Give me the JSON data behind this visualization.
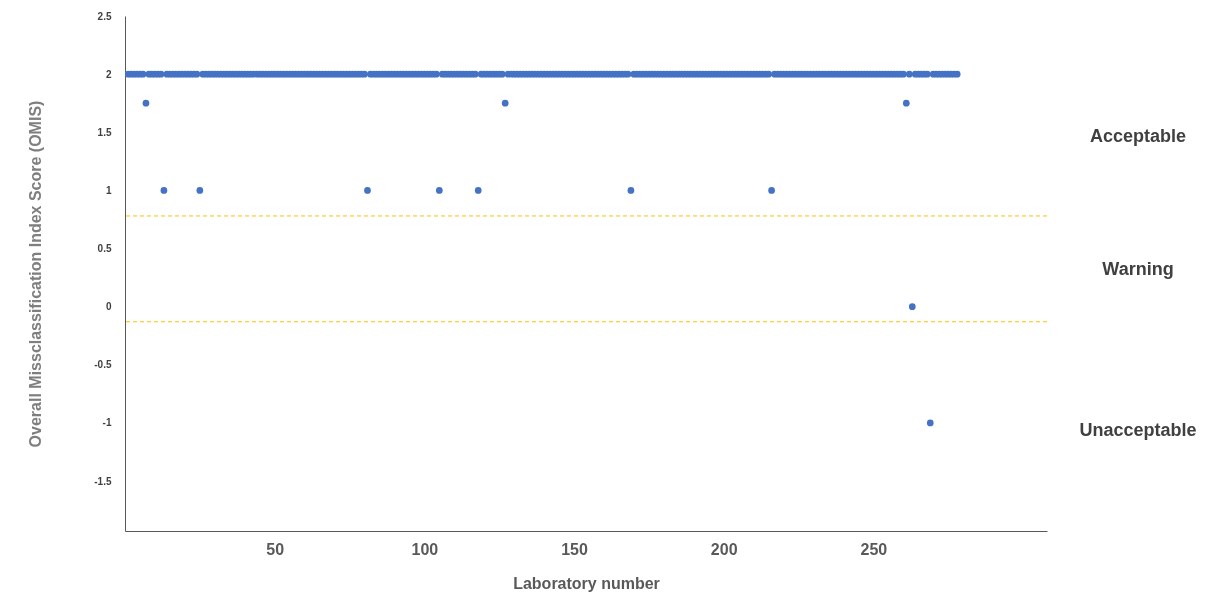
{
  "chart_data": {
    "type": "scatter",
    "xlabel": "Laboratory number",
    "ylabel": "Overall Missclassification Index Score (OMIS)",
    "x": [
      1,
      2,
      3,
      4,
      5,
      6,
      7,
      8,
      9,
      10,
      11,
      12,
      13,
      14,
      15,
      16,
      17,
      18,
      19,
      20,
      21,
      22,
      23,
      24,
      25,
      26,
      27,
      28,
      29,
      30,
      31,
      32,
      33,
      34,
      35,
      36,
      37,
      38,
      39,
      40,
      41,
      42,
      43,
      44,
      45,
      46,
      47,
      48,
      49,
      50,
      51,
      52,
      53,
      54,
      55,
      56,
      57,
      58,
      59,
      60,
      61,
      62,
      63,
      64,
      65,
      66,
      67,
      68,
      69,
      70,
      71,
      72,
      73,
      74,
      75,
      76,
      77,
      78,
      79,
      80,
      81,
      82,
      83,
      84,
      85,
      86,
      87,
      88,
      89,
      90,
      91,
      92,
      93,
      94,
      95,
      96,
      97,
      98,
      99,
      100,
      101,
      102,
      103,
      104,
      105,
      106,
      107,
      108,
      109,
      110,
      111,
      112,
      113,
      114,
      115,
      116,
      117,
      118,
      119,
      120,
      121,
      122,
      123,
      124,
      125,
      126,
      127,
      128,
      129,
      130,
      131,
      132,
      133,
      134,
      135,
      136,
      137,
      138,
      139,
      140,
      141,
      142,
      143,
      144,
      145,
      146,
      147,
      148,
      149,
      150,
      151,
      152,
      153,
      154,
      155,
      156,
      157,
      158,
      159,
      160,
      161,
      162,
      163,
      164,
      165,
      166,
      167,
      168,
      169,
      170,
      171,
      172,
      173,
      174,
      175,
      176,
      177,
      178,
      179,
      180,
      181,
      182,
      183,
      184,
      185,
      186,
      187,
      188,
      189,
      190,
      191,
      192,
      193,
      194,
      195,
      196,
      197,
      198,
      199,
      200,
      201,
      202,
      203,
      204,
      205,
      206,
      207,
      208,
      209,
      210,
      211,
      212,
      213,
      214,
      215,
      216,
      217,
      218,
      219,
      220,
      221,
      222,
      223,
      224,
      225,
      226,
      227,
      228,
      229,
      230,
      231,
      232,
      233,
      234,
      235,
      236,
      237,
      238,
      239,
      240,
      241,
      242,
      243,
      244,
      245,
      246,
      247,
      248,
      249,
      250,
      251,
      252,
      253,
      254,
      255,
      256,
      257,
      258,
      259,
      260,
      261,
      262,
      263,
      264,
      265,
      266,
      267,
      268,
      269,
      270,
      271,
      272,
      273,
      274,
      275,
      276,
      277,
      278
    ],
    "series": [
      {
        "color": "#4472c4",
        "values": [
          2,
          2,
          2,
          2,
          2,
          2,
          1.75,
          2,
          2,
          2,
          2,
          2,
          1,
          2,
          2,
          2,
          2,
          2,
          2,
          2,
          2,
          2,
          2,
          2,
          1,
          2,
          2,
          2,
          2,
          2,
          2,
          2,
          2,
          2,
          2,
          2,
          2,
          2,
          2,
          2,
          2,
          2,
          2,
          2,
          2,
          2,
          2,
          2,
          2,
          2,
          2,
          2,
          2,
          2,
          2,
          2,
          2,
          2,
          2,
          2,
          2,
          2,
          2,
          2,
          2,
          2,
          2,
          2,
          2,
          2,
          2,
          2,
          2,
          2,
          2,
          2,
          2,
          2,
          2,
          2,
          1,
          2,
          2,
          2,
          2,
          2,
          2,
          2,
          2,
          2,
          2,
          2,
          2,
          2,
          2,
          2,
          2,
          2,
          2,
          2,
          2,
          2,
          2,
          2,
          1,
          2,
          2,
          2,
          2,
          2,
          2,
          2,
          2,
          2,
          2,
          2,
          2,
          1,
          2,
          2,
          2,
          2,
          2,
          2,
          2,
          2,
          1.75,
          2,
          2,
          2,
          2,
          2,
          2,
          2,
          2,
          2,
          2,
          2,
          2,
          2,
          2,
          2,
          2,
          2,
          2,
          2,
          2,
          2,
          2,
          2,
          2,
          2,
          2,
          2,
          2,
          2,
          2,
          2,
          2,
          2,
          2,
          2,
          2,
          2,
          2,
          2,
          2,
          2,
          1,
          2,
          2,
          2,
          2,
          2,
          2,
          2,
          2,
          2,
          2,
          2,
          2,
          2,
          2,
          2,
          2,
          2,
          2,
          2,
          2,
          2,
          2,
          2,
          2,
          2,
          2,
          2,
          2,
          2,
          2,
          2,
          2,
          2,
          2,
          2,
          2,
          2,
          2,
          2,
          2,
          2,
          2,
          2,
          2,
          2,
          2,
          1,
          2,
          2,
          2,
          2,
          2,
          2,
          2,
          2,
          2,
          2,
          2,
          2,
          2,
          2,
          2,
          2,
          2,
          2,
          2,
          2,
          2,
          2,
          2,
          2,
          2,
          2,
          2,
          2,
          2,
          2,
          2,
          2,
          2,
          2,
          2,
          2,
          2,
          2,
          2,
          2,
          2,
          2,
          2,
          2,
          1.75,
          2,
          0,
          2,
          2,
          2,
          2,
          2,
          -1,
          2,
          2,
          2,
          2,
          2,
          2,
          2,
          2,
          2
        ]
      }
    ],
    "xlim": [
      0,
      308
    ],
    "xticks": [
      50,
      100,
      150,
      200,
      250
    ],
    "ylim": [
      -1.93,
      2.5
    ],
    "yticks": [
      2.5,
      2,
      1.5,
      1,
      0.5,
      0,
      -0.5,
      -1,
      -1.5
    ],
    "ref_lines": [
      {
        "axis": "y",
        "value": 0.78,
        "color": "#ffc000",
        "line_style": "dashed"
      },
      {
        "axis": "y",
        "value": -0.13,
        "color": "#ffc000",
        "line_style": "dashed"
      }
    ],
    "annotations": [
      "Acceptable",
      "Warning",
      "Unacceptable"
    ],
    "marker": "circle",
    "grid": false
  }
}
